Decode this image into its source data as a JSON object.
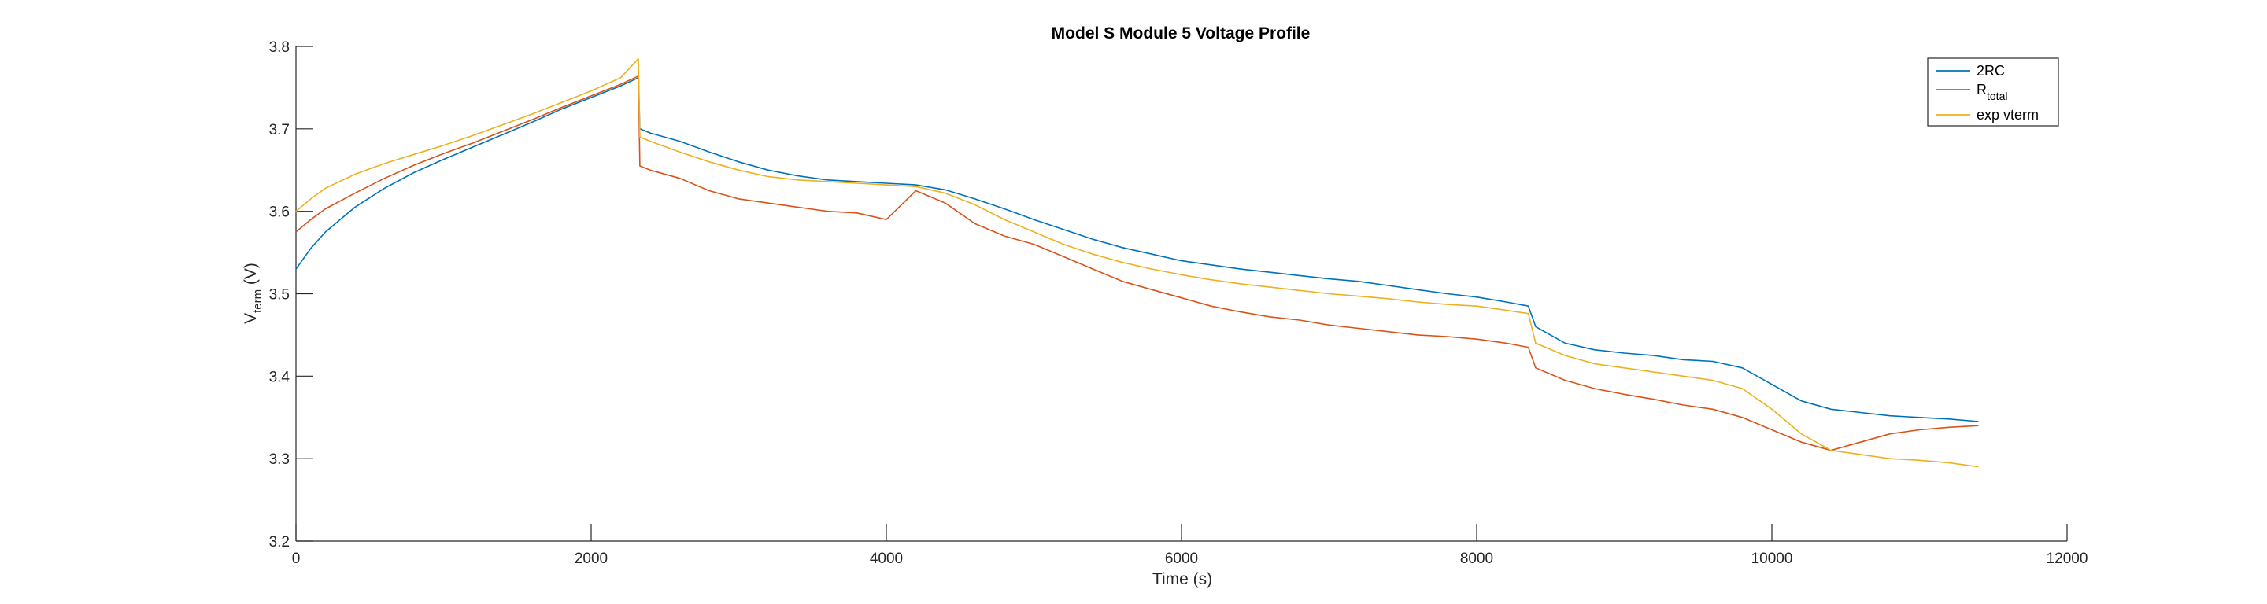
{
  "chart_data": {
    "type": "line",
    "title": "Model S Module 5 Voltage Profile",
    "xlabel": "Time (s)",
    "ylabel": {
      "main": "V",
      "sub": "term",
      "suffix": " (V)"
    },
    "xlim": [
      0,
      12000
    ],
    "ylim": [
      3.2,
      3.8
    ],
    "xticks": [
      0,
      2000,
      4000,
      6000,
      8000,
      10000,
      12000
    ],
    "yticks": [
      3.2,
      3.3,
      3.4,
      3.5,
      3.6,
      3.7,
      3.8
    ],
    "xtick_labels": [
      "0",
      "2000",
      "4000",
      "6000",
      "8000",
      "10000",
      "12000"
    ],
    "ytick_labels": [
      "3.2",
      "3.3",
      "3.4",
      "3.5",
      "3.6",
      "3.7",
      "3.8"
    ],
    "grid": false,
    "legend_position": "top-right",
    "series": [
      {
        "name": "2RC",
        "legend_main": "2RC",
        "legend_sub": "",
        "color": "#0072BD",
        "x": [
          0,
          100,
          200,
          400,
          600,
          800,
          1000,
          1200,
          1400,
          1600,
          1800,
          2000,
          2200,
          2320,
          2330,
          2400,
          2600,
          2800,
          3000,
          3200,
          3400,
          3600,
          3800,
          4000,
          4200,
          4400,
          4600,
          4800,
          5000,
          5200,
          5400,
          5600,
          5800,
          6000,
          6200,
          6400,
          6600,
          6800,
          7000,
          7200,
          7400,
          7600,
          7800,
          8000,
          8200,
          8350,
          8400,
          8600,
          8800,
          9000,
          9200,
          9400,
          9600,
          9800,
          10000,
          10200,
          10400,
          10600,
          10800,
          11000,
          11200,
          11400
        ],
        "y": [
          3.53,
          3.555,
          3.575,
          3.605,
          3.628,
          3.647,
          3.663,
          3.678,
          3.693,
          3.708,
          3.724,
          3.738,
          3.752,
          3.762,
          3.7,
          3.695,
          3.685,
          3.672,
          3.66,
          3.65,
          3.643,
          3.638,
          3.636,
          3.634,
          3.632,
          3.626,
          3.615,
          3.603,
          3.59,
          3.578,
          3.566,
          3.556,
          3.548,
          3.54,
          3.535,
          3.53,
          3.526,
          3.522,
          3.518,
          3.515,
          3.51,
          3.505,
          3.5,
          3.496,
          3.49,
          3.485,
          3.46,
          3.44,
          3.432,
          3.428,
          3.425,
          3.42,
          3.418,
          3.41,
          3.39,
          3.37,
          3.36,
          3.356,
          3.352,
          3.35,
          3.348,
          3.345
        ]
      },
      {
        "name": "R_total",
        "legend_main": "R",
        "legend_sub": "total",
        "color": "#D95319",
        "x": [
          0,
          100,
          200,
          400,
          600,
          800,
          1000,
          1200,
          1400,
          1600,
          1800,
          2000,
          2200,
          2320,
          2330,
          2400,
          2600,
          2800,
          3000,
          3200,
          3400,
          3600,
          3800,
          4000,
          4200,
          4400,
          4600,
          4800,
          5000,
          5200,
          5400,
          5600,
          5800,
          6000,
          6200,
          6400,
          6600,
          6800,
          7000,
          7200,
          7400,
          7600,
          7800,
          8000,
          8200,
          8350,
          8400,
          8600,
          8800,
          9000,
          9200,
          9400,
          9600,
          9800,
          10000,
          10200,
          10400,
          10600,
          10800,
          11000,
          11200,
          11400
        ],
        "y": [
          3.575,
          3.59,
          3.603,
          3.622,
          3.64,
          3.656,
          3.67,
          3.683,
          3.697,
          3.711,
          3.726,
          3.74,
          3.754,
          3.764,
          3.655,
          3.65,
          3.64,
          3.625,
          3.615,
          3.61,
          3.605,
          3.6,
          3.598,
          3.59,
          3.625,
          3.61,
          3.585,
          3.57,
          3.56,
          3.545,
          3.53,
          3.515,
          3.505,
          3.495,
          3.485,
          3.478,
          3.472,
          3.468,
          3.462,
          3.458,
          3.454,
          3.45,
          3.448,
          3.445,
          3.44,
          3.435,
          3.41,
          3.395,
          3.385,
          3.378,
          3.372,
          3.365,
          3.36,
          3.35,
          3.335,
          3.32,
          3.31,
          3.32,
          3.33,
          3.335,
          3.338,
          3.34
        ]
      },
      {
        "name": "exp vterm",
        "legend_main": "exp vterm",
        "legend_sub": "",
        "color": "#EDB120",
        "x": [
          0,
          100,
          200,
          400,
          600,
          800,
          1000,
          1200,
          1400,
          1600,
          1800,
          2000,
          2200,
          2320,
          2330,
          2400,
          2600,
          2800,
          3000,
          3200,
          3400,
          3600,
          3800,
          4000,
          4200,
          4400,
          4600,
          4800,
          5000,
          5200,
          5400,
          5600,
          5800,
          6000,
          6200,
          6400,
          6600,
          6800,
          7000,
          7200,
          7400,
          7600,
          7800,
          8000,
          8200,
          8350,
          8400,
          8600,
          8800,
          9000,
          9200,
          9400,
          9600,
          9800,
          10000,
          10200,
          10400,
          10600,
          10800,
          11000,
          11200,
          11400
        ],
        "y": [
          3.6,
          3.615,
          3.628,
          3.645,
          3.658,
          3.669,
          3.68,
          3.692,
          3.705,
          3.718,
          3.732,
          3.746,
          3.762,
          3.785,
          3.69,
          3.685,
          3.672,
          3.66,
          3.65,
          3.642,
          3.638,
          3.636,
          3.634,
          3.632,
          3.63,
          3.622,
          3.608,
          3.59,
          3.575,
          3.56,
          3.548,
          3.538,
          3.53,
          3.523,
          3.517,
          3.512,
          3.508,
          3.504,
          3.5,
          3.497,
          3.494,
          3.49,
          3.487,
          3.485,
          3.48,
          3.476,
          3.44,
          3.425,
          3.415,
          3.41,
          3.405,
          3.4,
          3.395,
          3.385,
          3.36,
          3.33,
          3.31,
          3.305,
          3.3,
          3.298,
          3.295,
          3.29
        ]
      }
    ]
  }
}
